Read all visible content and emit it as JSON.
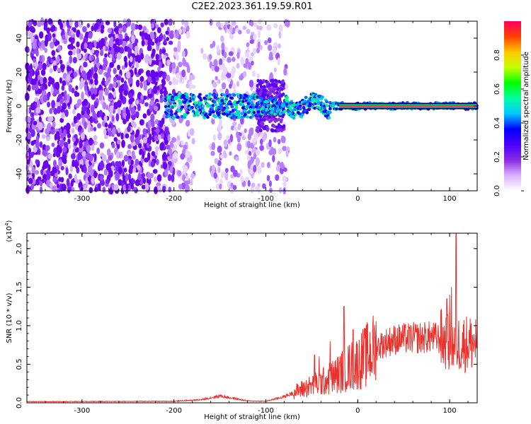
{
  "title": "C2E2.2023.361.19.59.R01",
  "chart_data": [
    {
      "type": "heatmap",
      "xlabel": "Height of straight line (km)",
      "ylabel": "Frequency (Hz)",
      "xlim": [
        -360,
        130
      ],
      "ylim": [
        -50,
        50
      ],
      "xticks": [
        -300,
        -200,
        -100,
        0,
        100
      ],
      "yticks": [
        -40,
        -20,
        0,
        20,
        40
      ],
      "colorbar": {
        "label": "Normalized spectral amplitude",
        "range": [
          0,
          1
        ],
        "ticks": [
          "0.0",
          "0.2",
          "0.4",
          "0.6",
          "0.8"
        ],
        "colormap": [
          "#ffffff",
          "#d8b0ff",
          "#8a2be2",
          "#4b00ff",
          "#0000ff",
          "#00c8ff",
          "#00ffa0",
          "#00ff00",
          "#c8ff00",
          "#ffc800",
          "#ff4000",
          "#ff0060"
        ]
      },
      "features": {
        "noise_region_x": [
          -360,
          -105
        ],
        "noise_gap_x": [
          -178,
          -160
        ],
        "dense_noise_x": [
          -110,
          -80
        ],
        "signal_start_x": -210,
        "signal_line_frequency": 0,
        "signal_line_strong_from_x": -20
      }
    },
    {
      "type": "line",
      "xlabel": "Height of straight line (km)",
      "ylabel": "SNR (10 * v/v)",
      "yscale_label": "(x10",
      "yscale_exp": "4",
      "xlim": [
        -360,
        130
      ],
      "ylim": [
        0,
        22000
      ],
      "xticks": [
        -300,
        -200,
        -100,
        0,
        100
      ],
      "yticks": [
        "0.0",
        "0.5",
        "1.0",
        "1.5",
        "2.0"
      ],
      "series_color": "#e8322e",
      "envelope": {
        "x": [
          -360,
          -300,
          -200,
          -170,
          -150,
          -120,
          -100,
          -80,
          -60,
          -40,
          -30,
          -20,
          -15,
          -10,
          0,
          10,
          20,
          30,
          40,
          60,
          80,
          90,
          100,
          110,
          130
        ],
        "y": [
          150,
          170,
          200,
          400,
          900,
          250,
          200,
          800,
          1800,
          2600,
          3200,
          3800,
          4300,
          4600,
          5200,
          6200,
          7200,
          7800,
          8200,
          8400,
          8500,
          8300,
          7600,
          7700,
          7800
        ]
      },
      "spikes": [
        {
          "x": -47,
          "y": 6200
        },
        {
          "x": -42,
          "y": 6000
        },
        {
          "x": -30,
          "y": 8000
        },
        {
          "x": -15,
          "y": 12500
        },
        {
          "x": -5,
          "y": 9500
        },
        {
          "x": 97,
          "y": 13500
        },
        {
          "x": 100,
          "y": 14000
        },
        {
          "x": 102,
          "y": 15000
        },
        {
          "x": 107,
          "y": 22500
        }
      ]
    }
  ]
}
